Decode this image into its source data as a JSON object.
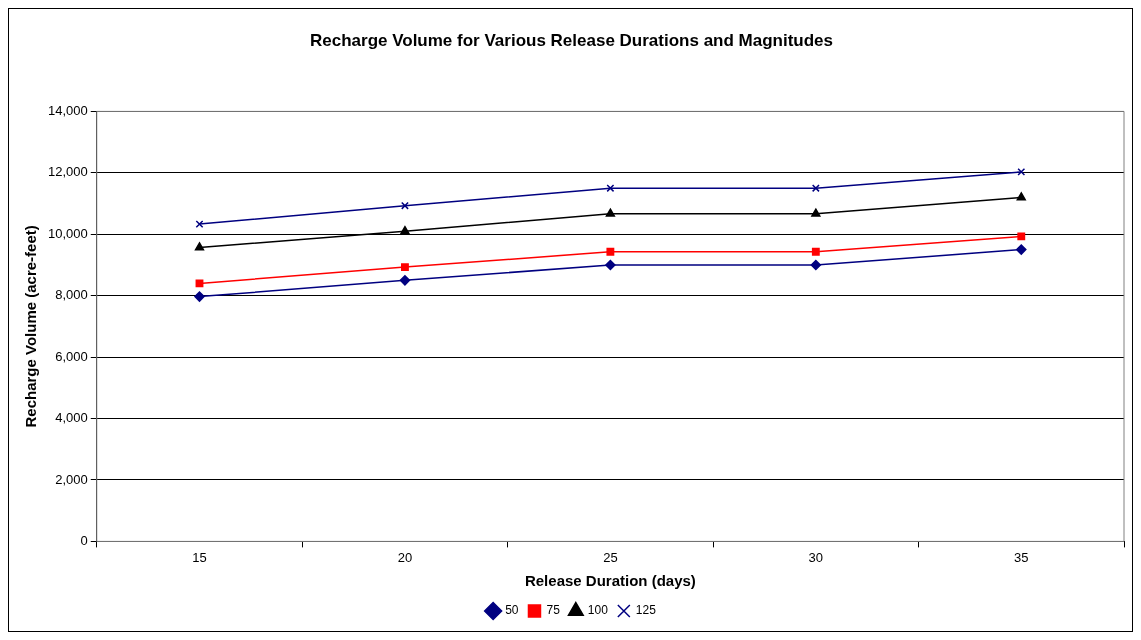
{
  "chart_data": {
    "type": "line",
    "title": "Recharge Volume for Various Release Durations and Magnitudes",
    "xlabel": "Release Duration (days)",
    "ylabel": "Recharge Volume (acre-feet)",
    "categories": [
      "15",
      "20",
      "25",
      "30",
      "35"
    ],
    "series": [
      {
        "name": "50",
        "color": "#000080",
        "marker": "diamond",
        "values": [
          7970,
          8500,
          9000,
          9000,
          9500
        ]
      },
      {
        "name": "75",
        "color": "#ff0000",
        "marker": "square",
        "values": [
          8400,
          8930,
          9430,
          9430,
          9930
        ]
      },
      {
        "name": "100",
        "color": "#000000",
        "marker": "triangle",
        "values": [
          9570,
          10100,
          10670,
          10670,
          11200
        ]
      },
      {
        "name": "125",
        "color": "#000080",
        "marker": "cross",
        "values": [
          10330,
          10930,
          11500,
          11500,
          12030
        ]
      }
    ],
    "ylim": [
      0,
      14000
    ],
    "yticks": [
      {
        "value": 0,
        "label": "0"
      },
      {
        "value": 2000,
        "label": "2,000"
      },
      {
        "value": 4000,
        "label": "4,000"
      },
      {
        "value": 6000,
        "label": "6,000"
      },
      {
        "value": 8000,
        "label": "8,000"
      },
      {
        "value": 10000,
        "label": "10,000"
      },
      {
        "value": 12000,
        "label": "12,000"
      },
      {
        "value": 14000,
        "label": "14,000"
      }
    ],
    "grid": "y",
    "legend": "bottom",
    "line_style": "solid"
  }
}
